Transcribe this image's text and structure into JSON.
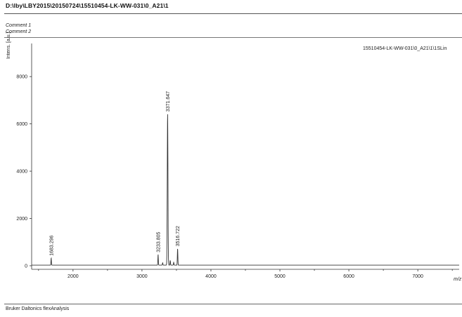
{
  "header": {
    "path": "D:\\lby\\LBY2015\\20150724\\15510454-LK-WW-031\\0_A21\\1"
  },
  "comments": [
    "Comment 1",
    "Comment 2"
  ],
  "footer": {
    "software": "Bruker Daltonics flexAnalysis"
  },
  "chart_data": {
    "type": "line",
    "title": "",
    "series_label": "15510454-LK-WW-031\\0_A21\\1\\1SLin",
    "xlabel": "m/z",
    "ylabel": "Intens. [a.u.]",
    "xlim": [
      1400,
      7600
    ],
    "ylim": [
      -150,
      9400
    ],
    "x_ticks": [
      2000,
      3000,
      4000,
      5000,
      6000,
      7000
    ],
    "y_ticks": [
      0,
      2000,
      4000,
      6000,
      8000
    ],
    "grid": false,
    "peaks": [
      {
        "x": 1683.296,
        "y": 300,
        "label": "1683.296"
      },
      {
        "x": 3233.805,
        "y": 450,
        "label": "3233.805"
      },
      {
        "x": 3371.647,
        "y": 6400,
        "label": "3371.647"
      },
      {
        "x": 3516.722,
        "y": 700,
        "label": "3516.722"
      }
    ],
    "minor_peaks": [
      {
        "x": 3410,
        "y": 200
      },
      {
        "x": 3460,
        "y": 120
      },
      {
        "x": 3300,
        "y": 100
      }
    ]
  }
}
